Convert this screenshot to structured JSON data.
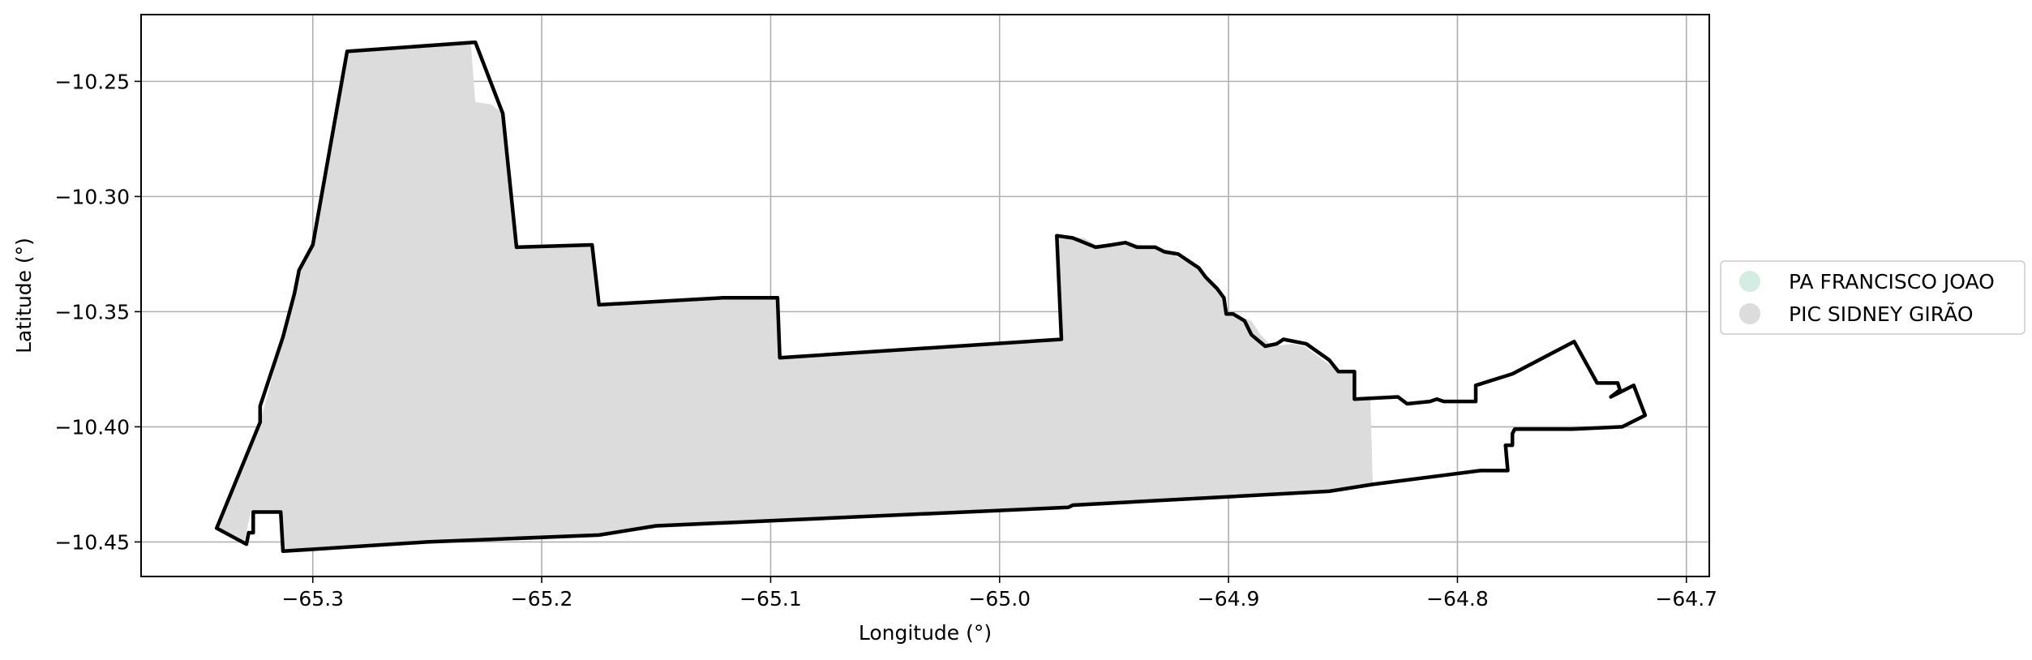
{
  "chart_data": {
    "type": "map",
    "xlabel": "Longitude (°)",
    "ylabel": "Latitude (°)",
    "xlim": [
      -65.375,
      -64.69
    ],
    "ylim": [
      -10.465,
      -10.221
    ],
    "grid": true,
    "legend_placement": "center-right-outside",
    "x_ticks": [
      {
        "v": -65.3,
        "label": "−65.3"
      },
      {
        "v": -65.2,
        "label": "−65.2"
      },
      {
        "v": -65.1,
        "label": "−65.1"
      },
      {
        "v": -65.0,
        "label": "−65.0"
      },
      {
        "v": -64.9,
        "label": "−64.9"
      },
      {
        "v": -64.8,
        "label": "−64.8"
      },
      {
        "v": -64.7,
        "label": "−64.7"
      }
    ],
    "y_ticks": [
      {
        "v": -10.25,
        "label": "−10.25"
      },
      {
        "v": -10.3,
        "label": "−10.30"
      },
      {
        "v": -10.35,
        "label": "−10.35"
      },
      {
        "v": -10.4,
        "label": "−10.40"
      },
      {
        "v": -10.45,
        "label": "−10.45"
      }
    ],
    "legend": [
      {
        "name": "PA FRANCISCO JOAO",
        "color": "#d4ede2"
      },
      {
        "name": "PIC SIDNEY GIRÃO",
        "color": "#dcdcdc"
      }
    ],
    "fill_polygon": {
      "name": "PIC SIDNEY GIRÃO",
      "color": "#dcdcdc",
      "coords": [
        [
          -65.342,
          -10.444
        ],
        [
          -65.323,
          -10.398
        ],
        [
          -65.313,
          -10.361
        ],
        [
          -65.308,
          -10.342
        ],
        [
          -65.306,
          -10.332
        ],
        [
          -65.3,
          -10.321
        ],
        [
          -65.285,
          -10.237
        ],
        [
          -65.231,
          -10.233
        ],
        [
          -65.229,
          -10.259
        ],
        [
          -65.222,
          -10.26
        ],
        [
          -65.217,
          -10.264
        ],
        [
          -65.211,
          -10.322
        ],
        [
          -65.178,
          -10.321
        ],
        [
          -65.175,
          -10.347
        ],
        [
          -65.121,
          -10.344
        ],
        [
          -65.097,
          -10.344
        ],
        [
          -65.096,
          -10.37
        ],
        [
          -64.973,
          -10.362
        ],
        [
          -64.975,
          -10.317
        ],
        [
          -64.963,
          -10.318
        ],
        [
          -64.958,
          -10.321
        ],
        [
          -64.945,
          -10.32
        ],
        [
          -64.932,
          -10.322
        ],
        [
          -64.925,
          -10.325
        ],
        [
          -64.913,
          -10.331
        ],
        [
          -64.908,
          -10.338
        ],
        [
          -64.903,
          -10.344
        ],
        [
          -64.9,
          -10.351
        ],
        [
          -64.89,
          -10.354
        ],
        [
          -64.886,
          -10.36
        ],
        [
          -64.881,
          -10.365
        ],
        [
          -64.872,
          -10.364
        ],
        [
          -64.867,
          -10.365
        ],
        [
          -64.86,
          -10.37
        ],
        [
          -64.853,
          -10.375
        ],
        [
          -64.846,
          -10.376
        ],
        [
          -64.845,
          -10.388
        ],
        [
          -64.838,
          -10.388
        ],
        [
          -64.837,
          -10.425
        ],
        [
          -64.85,
          -10.427
        ],
        [
          -64.87,
          -10.429
        ],
        [
          -64.969,
          -10.435
        ],
        [
          -65.0,
          -10.437
        ],
        [
          -65.15,
          -10.444
        ],
        [
          -65.175,
          -10.447
        ],
        [
          -65.25,
          -10.45
        ],
        [
          -65.313,
          -10.454
        ],
        [
          -65.314,
          -10.443
        ],
        [
          -65.315,
          -10.437
        ],
        [
          -65.327,
          -10.437
        ],
        [
          -65.33,
          -10.45
        ],
        [
          -65.342,
          -10.444
        ]
      ]
    },
    "series": [
      {
        "type": "outline",
        "color": "#000000",
        "coords": [
          [
            -65.342,
            -10.444
          ],
          [
            -65.323,
            -10.398
          ],
          [
            -65.323,
            -10.391
          ],
          [
            -65.313,
            -10.361
          ],
          [
            -65.308,
            -10.342
          ],
          [
            -65.306,
            -10.332
          ],
          [
            -65.3,
            -10.321
          ],
          [
            -65.285,
            -10.237
          ],
          [
            -65.229,
            -10.233
          ],
          [
            -65.217,
            -10.264
          ],
          [
            -65.211,
            -10.322
          ],
          [
            -65.178,
            -10.321
          ],
          [
            -65.175,
            -10.347
          ],
          [
            -65.121,
            -10.344
          ],
          [
            -65.097,
            -10.344
          ],
          [
            -65.096,
            -10.37
          ],
          [
            -64.973,
            -10.362
          ],
          [
            -64.975,
            -10.317
          ],
          [
            -64.968,
            -10.318
          ],
          [
            -64.963,
            -10.32
          ],
          [
            -64.958,
            -10.322
          ],
          [
            -64.951,
            -10.321
          ],
          [
            -64.945,
            -10.32
          ],
          [
            -64.94,
            -10.322
          ],
          [
            -64.932,
            -10.322
          ],
          [
            -64.928,
            -10.324
          ],
          [
            -64.922,
            -10.325
          ],
          [
            -64.913,
            -10.331
          ],
          [
            -64.91,
            -10.335
          ],
          [
            -64.905,
            -10.34
          ],
          [
            -64.902,
            -10.344
          ],
          [
            -64.901,
            -10.351
          ],
          [
            -64.898,
            -10.351
          ],
          [
            -64.893,
            -10.354
          ],
          [
            -64.89,
            -10.36
          ],
          [
            -64.884,
            -10.365
          ],
          [
            -64.879,
            -10.364
          ],
          [
            -64.876,
            -10.362
          ],
          [
            -64.866,
            -10.364
          ],
          [
            -64.856,
            -10.371
          ],
          [
            -64.852,
            -10.376
          ],
          [
            -64.845,
            -10.376
          ],
          [
            -64.845,
            -10.388
          ],
          [
            -64.826,
            -10.387
          ],
          [
            -64.822,
            -10.39
          ],
          [
            -64.812,
            -10.389
          ],
          [
            -64.809,
            -10.388
          ],
          [
            -64.806,
            -10.389
          ],
          [
            -64.792,
            -10.389
          ],
          [
            -64.792,
            -10.382
          ],
          [
            -64.776,
            -10.377
          ],
          [
            -64.749,
            -10.363
          ],
          [
            -64.739,
            -10.381
          ],
          [
            -64.73,
            -10.381
          ],
          [
            -64.729,
            -10.384
          ],
          [
            -64.733,
            -10.387
          ],
          [
            -64.723,
            -10.382
          ],
          [
            -64.718,
            -10.395
          ],
          [
            -64.728,
            -10.4
          ],
          [
            -64.75,
            -10.401
          ],
          [
            -64.775,
            -10.401
          ],
          [
            -64.776,
            -10.403
          ],
          [
            -64.776,
            -10.408
          ],
          [
            -64.779,
            -10.408
          ],
          [
            -64.778,
            -10.419
          ],
          [
            -64.79,
            -10.419
          ],
          [
            -64.837,
            -10.425
          ],
          [
            -64.856,
            -10.428
          ],
          [
            -64.968,
            -10.434
          ],
          [
            -64.97,
            -10.435
          ],
          [
            -65.15,
            -10.443
          ],
          [
            -65.175,
            -10.447
          ],
          [
            -65.25,
            -10.45
          ],
          [
            -65.313,
            -10.454
          ],
          [
            -65.314,
            -10.437
          ],
          [
            -65.326,
            -10.437
          ],
          [
            -65.326,
            -10.446
          ],
          [
            -65.328,
            -10.446
          ],
          [
            -65.329,
            -10.451
          ],
          [
            -65.342,
            -10.444
          ]
        ]
      }
    ]
  }
}
